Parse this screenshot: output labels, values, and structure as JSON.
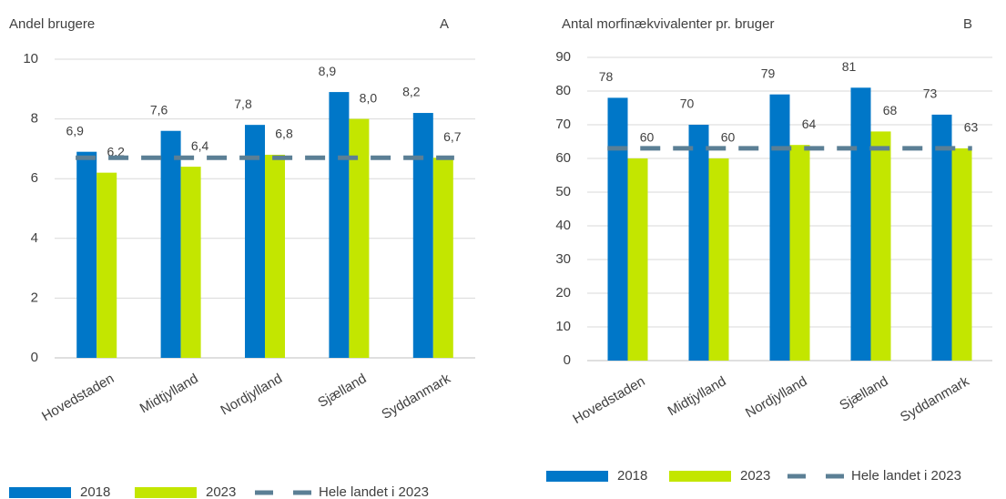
{
  "chart_data": [
    {
      "type": "bar",
      "title": "Andel brugere",
      "panel": "A",
      "categories": [
        "Hovedstaden",
        "Midtjylland",
        "Nordjylland",
        "Sjælland",
        "Syddanmark"
      ],
      "series": [
        {
          "name": "2018",
          "color": "#0077c8",
          "values": [
            6.9,
            7.6,
            7.8,
            8.9,
            8.2
          ],
          "value_labels": [
            "6,9",
            "7,6",
            "7,8",
            "8,9",
            "8,2"
          ]
        },
        {
          "name": "2023",
          "color": "#c3e600",
          "values": [
            6.2,
            6.4,
            6.8,
            8.0,
            6.7
          ],
          "value_labels": [
            "6,2",
            "6,4",
            "6,8",
            "8,0",
            "6,7"
          ]
        }
      ],
      "reference_line": {
        "name": "Hele landet i 2023",
        "value": 6.7,
        "color": "#5b7f95"
      },
      "ylim": [
        0,
        10
      ],
      "yticks": [
        0,
        2,
        4,
        6,
        8,
        10
      ],
      "grid": true
    },
    {
      "type": "bar",
      "title": "Antal morfinækvivalenter pr. bruger",
      "panel": "B",
      "categories": [
        "Hovedstaden",
        "Midtjylland",
        "Nordjylland",
        "Sjælland",
        "Syddanmark"
      ],
      "series": [
        {
          "name": "2018",
          "color": "#0077c8",
          "values": [
            78,
            70,
            79,
            81,
            73
          ]
        },
        {
          "name": "2023",
          "color": "#c3e600",
          "values": [
            60,
            60,
            64,
            68,
            63
          ]
        }
      ],
      "reference_line": {
        "name": "Hele landet i 2023",
        "value": 63,
        "color": "#5b7f95"
      },
      "ylim": [
        0,
        90
      ],
      "yticks": [
        0,
        10,
        20,
        30,
        40,
        50,
        60,
        70,
        80,
        90
      ],
      "grid": true
    }
  ]
}
